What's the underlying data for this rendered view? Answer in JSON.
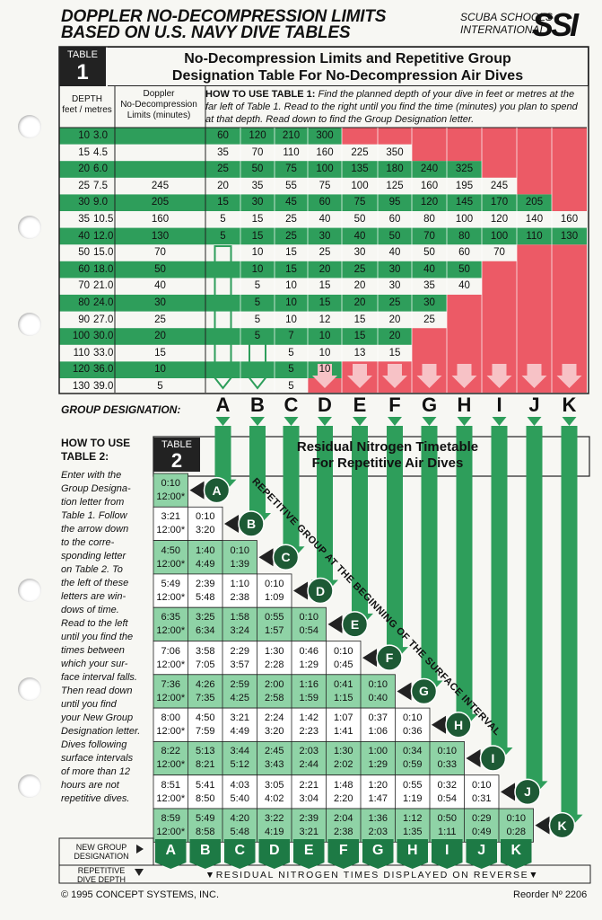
{
  "header": {
    "title_line1": "DOPPLER NO-DECOMPRESSION LIMITS",
    "title_line2": "BASED ON U.S. NAVY DIVE TABLES",
    "brand_line1": "SCUBA SCHOOLS",
    "brand_line2": "INTERNATIONAL",
    "logo": "SSI"
  },
  "table1": {
    "tag_word": "TABLE",
    "tag_number": "1",
    "title_line1": "No-Decompression Limits and Repetitive Group",
    "title_line2": "Designation Table For No-Decompression Air Dives",
    "depth_header_line1": "DEPTH",
    "depth_header_line2": "feet / metres",
    "doppler_header_line1": "Doppler",
    "doppler_header_line2": "No-Decompression",
    "doppler_header_line3": "Limits (minutes)",
    "howto_label": "HOW TO USE TABLE 1:",
    "howto_text": "Find the planned depth of your dive in feet or metres at the far left of Table 1. Read to the right until you find the time (minutes) you plan to spend at that depth. Read down to find the Group Designation letter.",
    "rows": [
      {
        "feet": "10",
        "metres": "3.0",
        "limit": "",
        "times": [
          "60",
          "120",
          "210",
          "300"
        ]
      },
      {
        "feet": "15",
        "metres": "4.5",
        "limit": "",
        "times": [
          "35",
          "70",
          "110",
          "160",
          "225",
          "350"
        ]
      },
      {
        "feet": "20",
        "metres": "6.0",
        "limit": "",
        "times": [
          "25",
          "50",
          "75",
          "100",
          "135",
          "180",
          "240",
          "325"
        ]
      },
      {
        "feet": "25",
        "metres": "7.5",
        "limit": "245",
        "times": [
          "20",
          "35",
          "55",
          "75",
          "100",
          "125",
          "160",
          "195",
          "245"
        ]
      },
      {
        "feet": "30",
        "metres": "9.0",
        "limit": "205",
        "times": [
          "15",
          "30",
          "45",
          "60",
          "75",
          "95",
          "120",
          "145",
          "170",
          "205"
        ]
      },
      {
        "feet": "35",
        "metres": "10.5",
        "limit": "160",
        "times": [
          "5",
          "15",
          "25",
          "40",
          "50",
          "60",
          "80",
          "100",
          "120",
          "140",
          "160"
        ]
      },
      {
        "feet": "40",
        "metres": "12.0",
        "limit": "130",
        "times": [
          "5",
          "15",
          "25",
          "30",
          "40",
          "50",
          "70",
          "80",
          "100",
          "110",
          "130"
        ]
      },
      {
        "feet": "50",
        "metres": "15.0",
        "limit": "70",
        "times": [
          "",
          "10",
          "15",
          "25",
          "30",
          "40",
          "50",
          "60",
          "70"
        ]
      },
      {
        "feet": "60",
        "metres": "18.0",
        "limit": "50",
        "times": [
          "",
          "10",
          "15",
          "20",
          "25",
          "30",
          "40",
          "50"
        ]
      },
      {
        "feet": "70",
        "metres": "21.0",
        "limit": "40",
        "times": [
          "",
          "5",
          "10",
          "15",
          "20",
          "30",
          "35",
          "40"
        ]
      },
      {
        "feet": "80",
        "metres": "24.0",
        "limit": "30",
        "times": [
          "",
          "5",
          "10",
          "15",
          "20",
          "25",
          "30"
        ]
      },
      {
        "feet": "90",
        "metres": "27.0",
        "limit": "25",
        "times": [
          "",
          "5",
          "10",
          "12",
          "15",
          "20",
          "25"
        ]
      },
      {
        "feet": "100",
        "metres": "30.0",
        "limit": "20",
        "times": [
          "",
          "5",
          "7",
          "10",
          "15",
          "20"
        ]
      },
      {
        "feet": "110",
        "metres": "33.0",
        "limit": "15",
        "times": [
          "",
          "",
          "5",
          "10",
          "13",
          "15"
        ]
      },
      {
        "feet": "120",
        "metres": "36.0",
        "limit": "10",
        "times": [
          "",
          "",
          "5",
          "10"
        ]
      },
      {
        "feet": "130",
        "metres": "39.0",
        "limit": "5",
        "times": [
          "",
          "",
          "5"
        ]
      }
    ]
  },
  "group_designation": {
    "label": "GROUP DESIGNATION:",
    "letters": [
      "A",
      "B",
      "C",
      "D",
      "E",
      "F",
      "G",
      "H",
      "I",
      "J",
      "K"
    ]
  },
  "table2": {
    "howto_heading_line1": "HOW TO USE",
    "howto_heading_line2": "TABLE 2:",
    "howto_lines": [
      "Enter with the",
      "Group Designa-",
      "tion letter from",
      "Table 1. Follow",
      "the arrow down",
      "to the corre-",
      "sponding letter",
      "on Table 2. To",
      "the left of these",
      "letters are win-",
      "dows of time.",
      "Read to the left",
      "until you find the",
      "times between",
      "which your sur-",
      "face interval falls.",
      "Then read down",
      "until you find",
      "your New Group",
      "Designation letter.",
      "Dives following",
      "surface intervals",
      "of more than 12",
      "hours are not",
      "repetitive dives."
    ],
    "tag_word": "TABLE",
    "tag_number": "2",
    "title_line1": "Residual Nitrogen Timetable",
    "title_line2": "For Repetitive Air Dives",
    "diagonal_text": "REPETITIVE GROUP AT THE BEGINNING OF THE SURFACE INTERVAL",
    "rows": [
      {
        "group": "A",
        "cells": [
          [
            "0:10",
            "12:00*"
          ]
        ]
      },
      {
        "group": "B",
        "cells": [
          [
            "3:21",
            "12:00*"
          ],
          [
            "0:10",
            "3:20"
          ]
        ]
      },
      {
        "group": "C",
        "cells": [
          [
            "4:50",
            "12:00*"
          ],
          [
            "1:40",
            "4:49"
          ],
          [
            "0:10",
            "1:39"
          ]
        ]
      },
      {
        "group": "D",
        "cells": [
          [
            "5:49",
            "12:00*"
          ],
          [
            "2:39",
            "5:48"
          ],
          [
            "1:10",
            "2:38"
          ],
          [
            "0:10",
            "1:09"
          ]
        ]
      },
      {
        "group": "E",
        "cells": [
          [
            "6:35",
            "12:00*"
          ],
          [
            "3:25",
            "6:34"
          ],
          [
            "1:58",
            "3:24"
          ],
          [
            "0:55",
            "1:57"
          ],
          [
            "0:10",
            "0:54"
          ]
        ]
      },
      {
        "group": "F",
        "cells": [
          [
            "7:06",
            "12:00*"
          ],
          [
            "3:58",
            "7:05"
          ],
          [
            "2:29",
            "3:57"
          ],
          [
            "1:30",
            "2:28"
          ],
          [
            "0:46",
            "1:29"
          ],
          [
            "0:10",
            "0:45"
          ]
        ]
      },
      {
        "group": "G",
        "cells": [
          [
            "7:36",
            "12:00*"
          ],
          [
            "4:26",
            "7:35"
          ],
          [
            "2:59",
            "4:25"
          ],
          [
            "2:00",
            "2:58"
          ],
          [
            "1:16",
            "1:59"
          ],
          [
            "0:41",
            "1:15"
          ],
          [
            "0:10",
            "0:40"
          ]
        ]
      },
      {
        "group": "H",
        "cells": [
          [
            "8:00",
            "12:00*"
          ],
          [
            "4:50",
            "7:59"
          ],
          [
            "3:21",
            "4:49"
          ],
          [
            "2:24",
            "3:20"
          ],
          [
            "1:42",
            "2:23"
          ],
          [
            "1:07",
            "1:41"
          ],
          [
            "0:37",
            "1:06"
          ],
          [
            "0:10",
            "0:36"
          ]
        ]
      },
      {
        "group": "I",
        "cells": [
          [
            "8:22",
            "12:00*"
          ],
          [
            "5:13",
            "8:21"
          ],
          [
            "3:44",
            "5:12"
          ],
          [
            "2:45",
            "3:43"
          ],
          [
            "2:03",
            "2:44"
          ],
          [
            "1:30",
            "2:02"
          ],
          [
            "1:00",
            "1:29"
          ],
          [
            "0:34",
            "0:59"
          ],
          [
            "0:10",
            "0:33"
          ]
        ]
      },
      {
        "group": "J",
        "cells": [
          [
            "8:51",
            "12:00*"
          ],
          [
            "5:41",
            "8:50"
          ],
          [
            "4:03",
            "5:40"
          ],
          [
            "3:05",
            "4:02"
          ],
          [
            "2:21",
            "3:04"
          ],
          [
            "1:48",
            "2:20"
          ],
          [
            "1:20",
            "1:47"
          ],
          [
            "0:55",
            "1:19"
          ],
          [
            "0:32",
            "0:54"
          ],
          [
            "0:10",
            "0:31"
          ]
        ]
      },
      {
        "group": "K",
        "cells": [
          [
            "8:59",
            "12:00*"
          ],
          [
            "5:49",
            "8:58"
          ],
          [
            "4:20",
            "5:48"
          ],
          [
            "3:22",
            "4:19"
          ],
          [
            "2:39",
            "3:21"
          ],
          [
            "2:04",
            "2:38"
          ],
          [
            "1:36",
            "2:03"
          ],
          [
            "1:12",
            "1:35"
          ],
          [
            "0:50",
            "1:11"
          ],
          [
            "0:29",
            "0:49"
          ],
          [
            "0:10",
            "0:28"
          ]
        ]
      }
    ],
    "new_group_label_line1": "NEW GROUP",
    "new_group_label_line2": "DESIGNATION",
    "rep_depth_label_line1": "REPETITIVE",
    "rep_depth_label_line2": "DIVE DEPTH",
    "new_groups": [
      "A",
      "B",
      "C",
      "D",
      "E",
      "F",
      "G",
      "H",
      "I",
      "J",
      "K"
    ],
    "residual_note": "▼RESIDUAL NITROGEN TIMES DISPLAYED ON REVERSE▼"
  },
  "footer": {
    "copyright": "© 1995 CONCEPT SYSTEMS, INC.",
    "reorder": "Reorder Nº 2206"
  },
  "colors": {
    "green": "#2e9e5b",
    "light_green": "#8fd3a6",
    "red": "#ec5a66",
    "dark": "#222222"
  }
}
